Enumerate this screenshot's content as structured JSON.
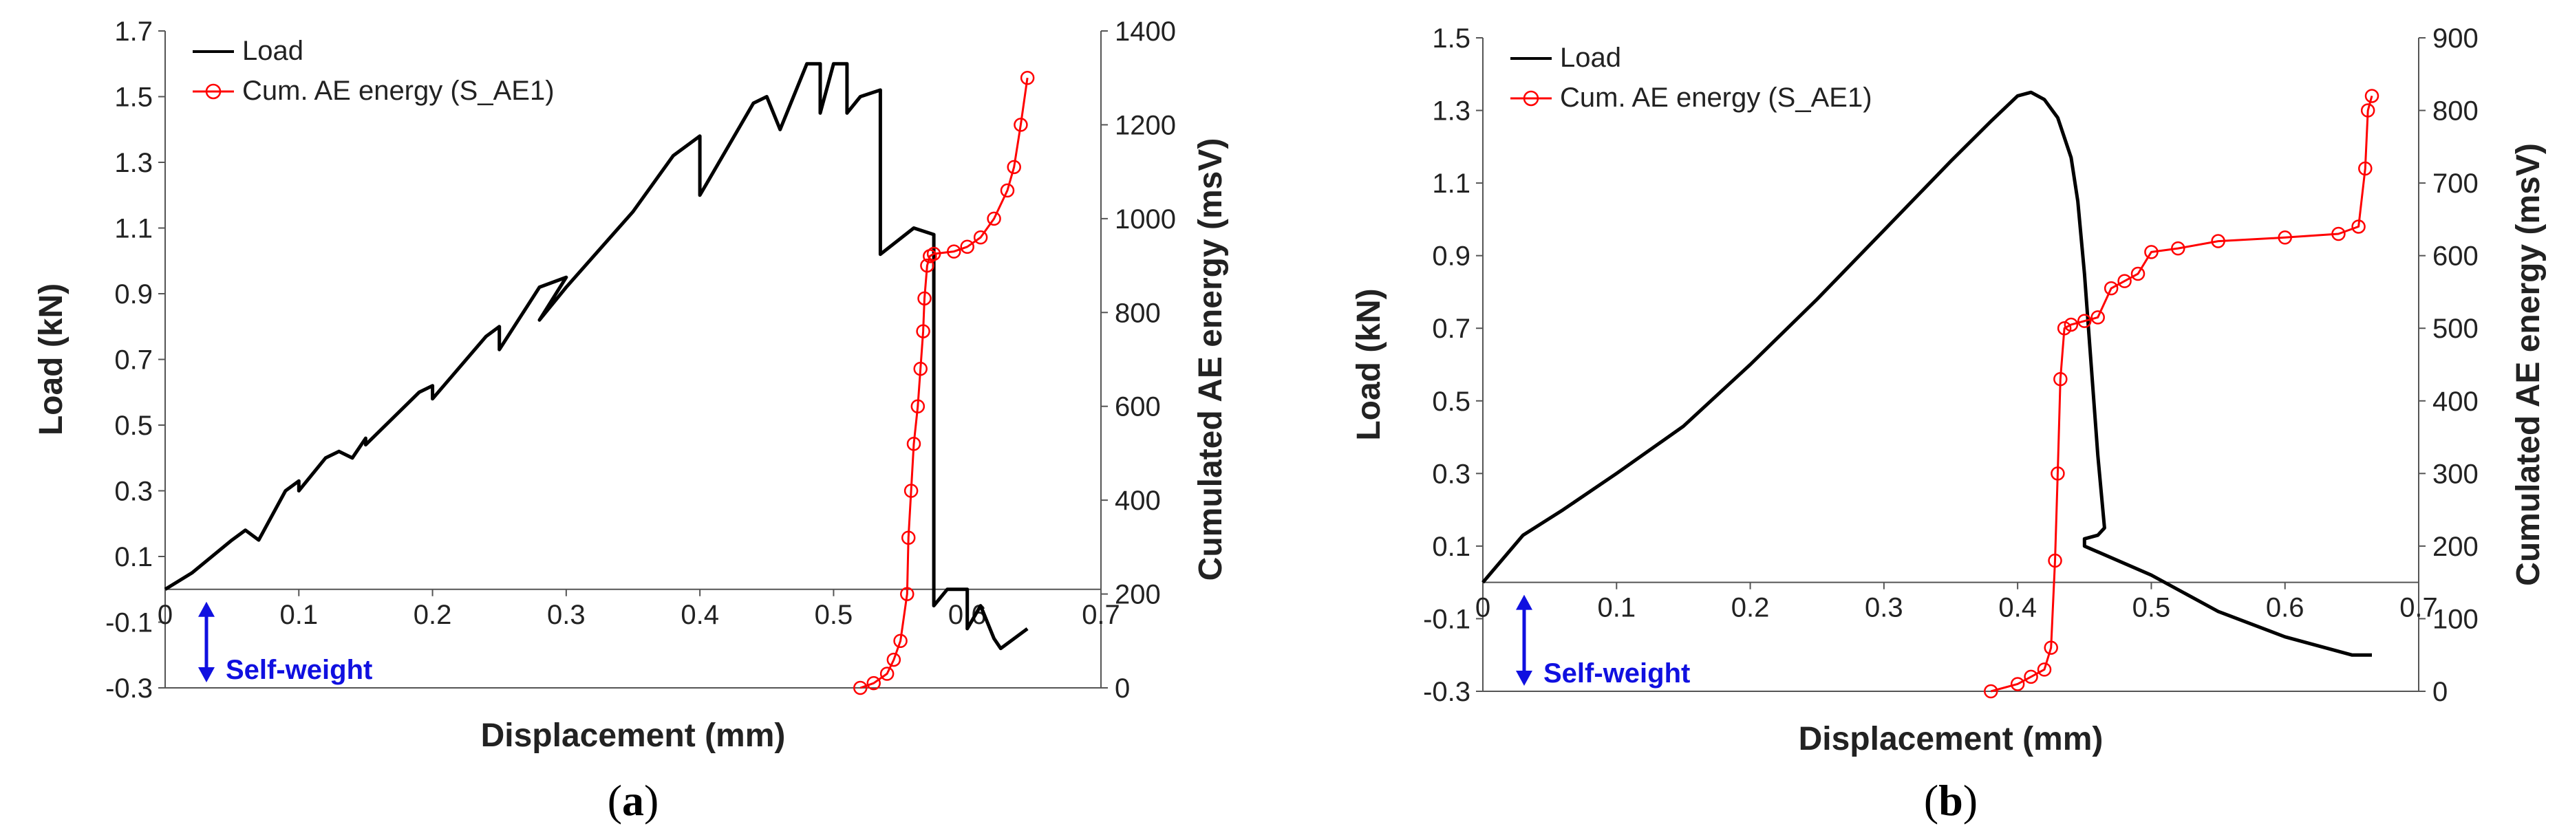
{
  "figure": {
    "colors": {
      "load": "#000000",
      "ae": "#ff0000",
      "arrow": "#1010e0",
      "axis": "#555555"
    }
  },
  "chart_data": [
    {
      "type": "line",
      "panel_label": "a",
      "xlabel": "Displacement (mm)",
      "ylabel": "Load (kN)",
      "y2label": "Cumulated AE energy (msV)",
      "xlim": [
        0,
        0.7
      ],
      "ylim": [
        -0.3,
        1.7
      ],
      "y2lim": [
        0,
        1400
      ],
      "x_ticks": [
        "0",
        "0.1",
        "0.2",
        "0.3",
        "0.4",
        "0.5",
        "0.6",
        "0.7"
      ],
      "y_ticks": [
        "-0.3",
        "-0.1",
        "0.1",
        "0.3",
        "0.5",
        "0.7",
        "0.9",
        "1.1",
        "1.3",
        "1.5",
        "1.7"
      ],
      "y2_ticks": [
        "0",
        "200",
        "400",
        "600",
        "800",
        "1000",
        "1200",
        "1400"
      ],
      "legend": [
        "Load",
        "Cum. AE energy (S_AE1)"
      ],
      "annotation": "Self-weight",
      "series": [
        {
          "name": "Load",
          "axis": "left",
          "x": [
            0,
            0.02,
            0.05,
            0.06,
            0.07,
            0.09,
            0.1,
            0.1,
            0.12,
            0.13,
            0.14,
            0.15,
            0.15,
            0.19,
            0.2,
            0.2,
            0.24,
            0.25,
            0.25,
            0.28,
            0.3,
            0.28,
            0.3,
            0.35,
            0.38,
            0.4,
            0.4,
            0.44,
            0.45,
            0.46,
            0.48,
            0.49,
            0.49,
            0.5,
            0.51,
            0.51,
            0.52,
            0.535,
            0.535,
            0.56,
            0.575,
            0.575,
            0.585,
            0.6,
            0.6,
            0.61,
            0.62,
            0.625,
            0.645
          ],
          "values": [
            0,
            0.05,
            0.15,
            0.18,
            0.15,
            0.3,
            0.33,
            0.3,
            0.4,
            0.42,
            0.4,
            0.46,
            0.44,
            0.6,
            0.62,
            0.58,
            0.77,
            0.8,
            0.73,
            0.92,
            0.95,
            0.82,
            0.92,
            1.15,
            1.32,
            1.38,
            1.2,
            1.48,
            1.5,
            1.4,
            1.6,
            1.6,
            1.45,
            1.6,
            1.6,
            1.45,
            1.5,
            1.52,
            1.02,
            1.1,
            1.08,
            -0.05,
            0,
            0,
            -0.12,
            -0.05,
            -0.15,
            -0.18,
            -0.12
          ]
        },
        {
          "name": "Cum. AE energy (S_AE1)",
          "axis": "right",
          "x": [
            0.52,
            0.53,
            0.54,
            0.545,
            0.55,
            0.555,
            0.556,
            0.558,
            0.56,
            0.563,
            0.565,
            0.567,
            0.568,
            0.57,
            0.572,
            0.575,
            0.59,
            0.6,
            0.61,
            0.62,
            0.63,
            0.635,
            0.64,
            0.645
          ],
          "values": [
            0,
            10,
            30,
            60,
            100,
            200,
            320,
            420,
            520,
            600,
            680,
            760,
            830,
            900,
            920,
            925,
            930,
            940,
            960,
            1000,
            1060,
            1110,
            1200,
            1300
          ]
        }
      ]
    },
    {
      "type": "line",
      "panel_label": "b",
      "xlabel": "Displacement (mm)",
      "ylabel": "Load (kN)",
      "y2label": "Cumulated AE energy (msV)",
      "xlim": [
        0,
        0.7
      ],
      "ylim": [
        -0.3,
        1.5
      ],
      "y2lim": [
        0,
        900
      ],
      "x_ticks": [
        "0",
        "0.1",
        "0.2",
        "0.3",
        "0.4",
        "0.5",
        "0.6",
        "0.7"
      ],
      "y_ticks": [
        "-0.3",
        "-0.1",
        "0.1",
        "0.3",
        "0.5",
        "0.7",
        "0.9",
        "1.1",
        "1.3",
        "1.5"
      ],
      "y2_ticks": [
        "0",
        "100",
        "200",
        "300",
        "400",
        "500",
        "600",
        "700",
        "800",
        "900"
      ],
      "legend": [
        "Load",
        "Cum. AE energy (S_AE1)"
      ],
      "annotation": "Self-weight",
      "series": [
        {
          "name": "Load",
          "axis": "left",
          "x": [
            0,
            0.03,
            0.06,
            0.1,
            0.15,
            0.2,
            0.25,
            0.3,
            0.35,
            0.38,
            0.4,
            0.41,
            0.42,
            0.43,
            0.44,
            0.445,
            0.45,
            0.455,
            0.46,
            0.465,
            0.46,
            0.45,
            0.45,
            0.5,
            0.55,
            0.6,
            0.65,
            0.665
          ],
          "values": [
            0,
            0.13,
            0.2,
            0.3,
            0.43,
            0.6,
            0.78,
            0.97,
            1.16,
            1.27,
            1.34,
            1.35,
            1.33,
            1.28,
            1.17,
            1.05,
            0.85,
            0.6,
            0.35,
            0.15,
            0.13,
            0.12,
            0.1,
            0.02,
            -0.08,
            -0.15,
            -0.2,
            -0.2
          ]
        },
        {
          "name": "Cum. AE energy (S_AE1)",
          "axis": "right",
          "x": [
            0.38,
            0.4,
            0.41,
            0.42,
            0.425,
            0.428,
            0.43,
            0.432,
            0.435,
            0.44,
            0.45,
            0.46,
            0.47,
            0.48,
            0.49,
            0.5,
            0.52,
            0.55,
            0.6,
            0.64,
            0.655,
            0.66,
            0.662,
            0.665
          ],
          "values": [
            0,
            10,
            20,
            30,
            60,
            180,
            300,
            430,
            500,
            505,
            510,
            515,
            555,
            565,
            575,
            605,
            610,
            620,
            625,
            630,
            640,
            720,
            800,
            820
          ]
        }
      ]
    }
  ]
}
